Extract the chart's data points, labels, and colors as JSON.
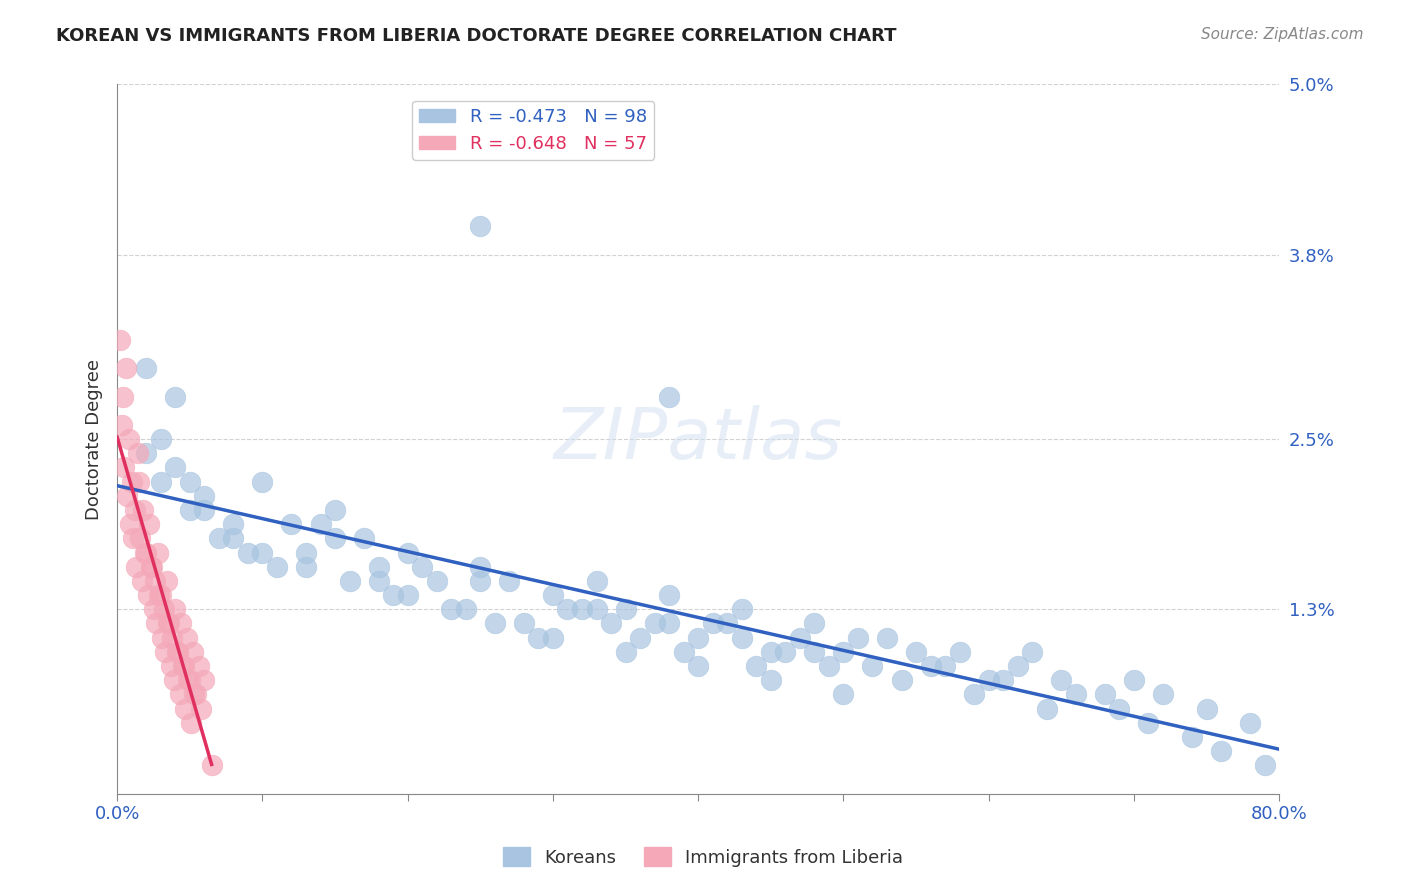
{
  "title": "KOREAN VS IMMIGRANTS FROM LIBERIA DOCTORATE DEGREE CORRELATION CHART",
  "source": "Source: ZipAtlas.com",
  "xlabel": "",
  "ylabel": "Doctorate Degree",
  "xlim": [
    0,
    0.8
  ],
  "ylim": [
    0,
    0.05
  ],
  "yticks": [
    0,
    0.013,
    0.025,
    0.038,
    0.05
  ],
  "ytick_labels": [
    "",
    "1.3%",
    "2.5%",
    "3.8%",
    "5.0%"
  ],
  "xtick_labels": [
    "0.0%",
    "80.0%"
  ],
  "legend1_r": "-0.473",
  "legend1_n": "98",
  "legend2_r": "-0.648",
  "legend2_n": "57",
  "korean_color": "#a8c4e0",
  "liberia_color": "#f4a8b8",
  "korean_line_color": "#3060c0",
  "liberia_line_color": "#e03060",
  "watermark": "ZIPatlas",
  "background_color": "#ffffff",
  "title_fontsize": 13,
  "korean_x": [
    0.02,
    0.03,
    0.04,
    0.05,
    0.06,
    0.08,
    0.1,
    0.12,
    0.13,
    0.15,
    0.17,
    0.18,
    0.2,
    0.22,
    0.25,
    0.27,
    0.3,
    0.32,
    0.33,
    0.35,
    0.37,
    0.38,
    0.4,
    0.42,
    0.43,
    0.45,
    0.47,
    0.48,
    0.5,
    0.52,
    0.53,
    0.55,
    0.57,
    0.58,
    0.6,
    0.62,
    0.63,
    0.65,
    0.68,
    0.7,
    0.72,
    0.75,
    0.78,
    0.03,
    0.05,
    0.07,
    0.09,
    0.11,
    0.14,
    0.16,
    0.19,
    0.21,
    0.24,
    0.26,
    0.29,
    0.31,
    0.34,
    0.36,
    0.39,
    0.41,
    0.44,
    0.46,
    0.49,
    0.51,
    0.54,
    0.56,
    0.59,
    0.61,
    0.64,
    0.66,
    0.69,
    0.71,
    0.74,
    0.76,
    0.79,
    0.02,
    0.04,
    0.06,
    0.08,
    0.1,
    0.13,
    0.15,
    0.18,
    0.2,
    0.23,
    0.25,
    0.28,
    0.3,
    0.33,
    0.35,
    0.38,
    0.4,
    0.43,
    0.45,
    0.48,
    0.5,
    0.25,
    0.38
  ],
  "korean_y": [
    0.03,
    0.025,
    0.028,
    0.022,
    0.02,
    0.018,
    0.022,
    0.019,
    0.017,
    0.02,
    0.018,
    0.016,
    0.017,
    0.015,
    0.016,
    0.015,
    0.014,
    0.013,
    0.015,
    0.013,
    0.012,
    0.014,
    0.011,
    0.012,
    0.013,
    0.01,
    0.011,
    0.012,
    0.01,
    0.009,
    0.011,
    0.01,
    0.009,
    0.01,
    0.008,
    0.009,
    0.01,
    0.008,
    0.007,
    0.008,
    0.007,
    0.006,
    0.005,
    0.022,
    0.02,
    0.018,
    0.017,
    0.016,
    0.019,
    0.015,
    0.014,
    0.016,
    0.013,
    0.012,
    0.011,
    0.013,
    0.012,
    0.011,
    0.01,
    0.012,
    0.009,
    0.01,
    0.009,
    0.011,
    0.008,
    0.009,
    0.007,
    0.008,
    0.006,
    0.007,
    0.006,
    0.005,
    0.004,
    0.003,
    0.002,
    0.024,
    0.023,
    0.021,
    0.019,
    0.017,
    0.016,
    0.018,
    0.015,
    0.014,
    0.013,
    0.015,
    0.012,
    0.011,
    0.013,
    0.01,
    0.012,
    0.009,
    0.011,
    0.008,
    0.01,
    0.007,
    0.04,
    0.028
  ],
  "liberia_x": [
    0.002,
    0.004,
    0.006,
    0.008,
    0.01,
    0.012,
    0.014,
    0.016,
    0.018,
    0.02,
    0.022,
    0.024,
    0.026,
    0.028,
    0.03,
    0.032,
    0.034,
    0.036,
    0.038,
    0.04,
    0.042,
    0.044,
    0.046,
    0.048,
    0.05,
    0.052,
    0.054,
    0.056,
    0.058,
    0.06,
    0.003,
    0.005,
    0.007,
    0.009,
    0.011,
    0.013,
    0.015,
    0.017,
    0.019,
    0.021,
    0.023,
    0.025,
    0.027,
    0.029,
    0.031,
    0.033,
    0.035,
    0.037,
    0.039,
    0.041,
    0.043,
    0.045,
    0.047,
    0.049,
    0.051,
    0.053,
    0.065
  ],
  "liberia_y": [
    0.032,
    0.028,
    0.03,
    0.025,
    0.022,
    0.02,
    0.024,
    0.018,
    0.02,
    0.017,
    0.019,
    0.016,
    0.015,
    0.017,
    0.014,
    0.013,
    0.015,
    0.012,
    0.011,
    0.013,
    0.01,
    0.012,
    0.009,
    0.011,
    0.008,
    0.01,
    0.007,
    0.009,
    0.006,
    0.008,
    0.026,
    0.023,
    0.021,
    0.019,
    0.018,
    0.016,
    0.022,
    0.015,
    0.017,
    0.014,
    0.016,
    0.013,
    0.012,
    0.014,
    0.011,
    0.01,
    0.012,
    0.009,
    0.008,
    0.01,
    0.007,
    0.009,
    0.006,
    0.008,
    0.005,
    0.007,
    0.002
  ]
}
